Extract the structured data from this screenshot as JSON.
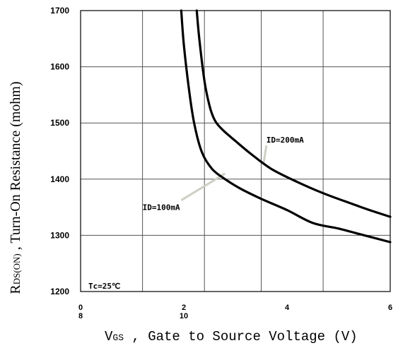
{
  "chart_data": {
    "type": "line",
    "xlabel": "V",
    "xlabel_sub": "GS",
    "xlabel_rest": " ,  Gate to Source Voltage (V)",
    "ylabel": "R",
    "ylabel_sub": "DS(ON)",
    "ylabel_rest": " ,  Turn-On Resistance (mohm)",
    "xlim": [
      0,
      6
    ],
    "ylim": [
      1200,
      1700
    ],
    "x_ticks": [
      {
        "value": 0,
        "label": "0",
        "sublabel": "8"
      },
      {
        "value": 2,
        "label": "2",
        "sublabel": "10"
      },
      {
        "value": 4,
        "label": "4",
        "sublabel": ""
      },
      {
        "value": 6,
        "label": "6",
        "sublabel": ""
      }
    ],
    "y_ticks": [
      {
        "value": 1200,
        "label": "1200"
      },
      {
        "value": 1300,
        "label": "1300"
      },
      {
        "value": 1400,
        "label": "1400"
      },
      {
        "value": 1500,
        "label": "1500"
      },
      {
        "value": 1600,
        "label": "1600"
      },
      {
        "value": 1700,
        "label": "1700"
      }
    ],
    "vertical_grid": [
      0,
      1.2,
      2.4,
      3.5,
      4.7,
      6
    ],
    "grid": true,
    "series": [
      {
        "name": "ID=100mA",
        "x": [
          1.95,
          2.0,
          2.1,
          2.2,
          2.35,
          2.55,
          2.8,
          3.1,
          3.5,
          4.0,
          4.5,
          5.0,
          5.5,
          6.0
        ],
        "y": [
          1700,
          1640,
          1560,
          1500,
          1448,
          1418,
          1400,
          1383,
          1365,
          1345,
          1322,
          1312,
          1300,
          1288
        ]
      },
      {
        "name": "ID=200mA",
        "x": [
          2.25,
          2.3,
          2.4,
          2.5,
          2.6,
          2.75,
          3.0,
          3.3,
          3.7,
          4.2,
          4.7,
          5.2,
          5.6,
          6.0
        ],
        "y": [
          1700,
          1650,
          1575,
          1530,
          1505,
          1488,
          1468,
          1445,
          1418,
          1395,
          1375,
          1358,
          1345,
          1333
        ]
      }
    ],
    "annotations": [
      {
        "text": "ID=200mA",
        "series_x": 3.55,
        "series_y": 1430,
        "text_x": 3.6,
        "text_y": 1465
      },
      {
        "text": "ID=100mA",
        "series_x": 2.8,
        "series_y": 1410,
        "text_x": 1.2,
        "text_y": 1345
      },
      {
        "text": "Tc=25℃",
        "text_x": 0.15,
        "text_y": 1205
      }
    ]
  }
}
